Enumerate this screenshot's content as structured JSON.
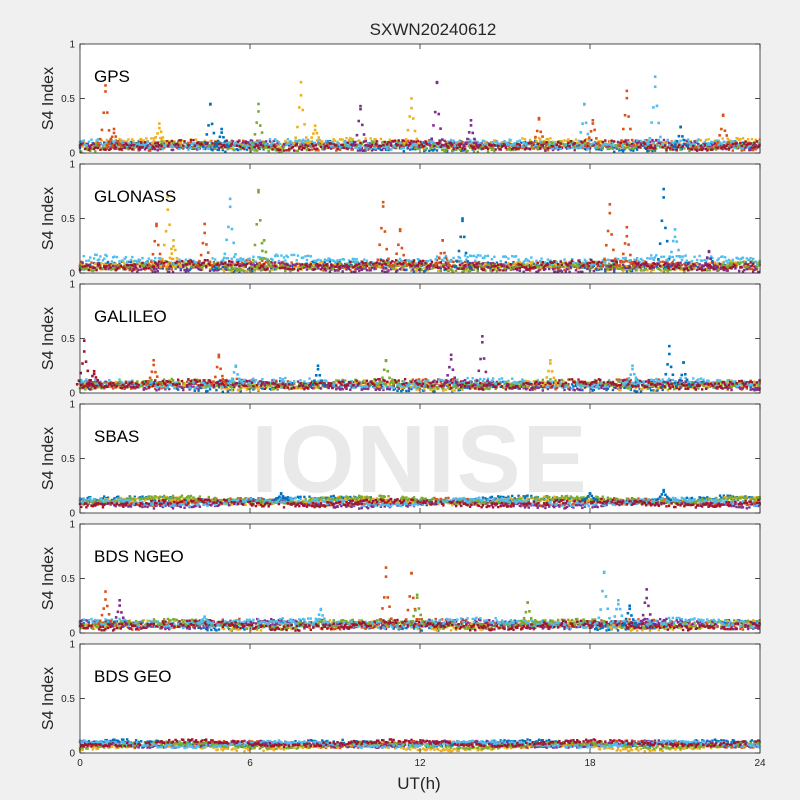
{
  "figure_title": "SXWN20240612",
  "watermark": "IONISE",
  "x_axis": {
    "label": "UT(h)",
    "range": [
      0,
      24
    ],
    "ticks": [
      0,
      6,
      12,
      18,
      24
    ]
  },
  "y_axis": {
    "label": "S4 Index",
    "range": [
      0,
      1
    ],
    "ticks": [
      0,
      0.5,
      1
    ]
  },
  "series_colors": [
    "#0072bd",
    "#d95319",
    "#edb120",
    "#7e2f8e",
    "#77ac30",
    "#4dbeee",
    "#a2142f"
  ],
  "chart_data": [
    {
      "type": "scatter",
      "title": "GPS",
      "xlabel": "UT(h)",
      "ylabel": "S4 Index",
      "xlim": [
        0,
        24
      ],
      "ylim": [
        0,
        1
      ],
      "baseline": [
        0.06,
        0.07,
        0.09,
        0.07,
        0.06,
        0.08,
        0.07
      ],
      "baseline_noise": 0.03,
      "spikes": [
        {
          "x": 0.9,
          "y": 0.62,
          "series": 1
        },
        {
          "x": 1.2,
          "y": 0.22,
          "series": 1
        },
        {
          "x": 2.8,
          "y": 0.27,
          "series": 2
        },
        {
          "x": 4.6,
          "y": 0.45,
          "series": 0
        },
        {
          "x": 5.0,
          "y": 0.22,
          "series": 0
        },
        {
          "x": 6.3,
          "y": 0.45,
          "series": 4
        },
        {
          "x": 7.8,
          "y": 0.65,
          "series": 2
        },
        {
          "x": 8.3,
          "y": 0.25,
          "series": 2
        },
        {
          "x": 9.9,
          "y": 0.43,
          "series": 3
        },
        {
          "x": 11.7,
          "y": 0.5,
          "series": 2
        },
        {
          "x": 12.6,
          "y": 0.65,
          "series": 3
        },
        {
          "x": 13.8,
          "y": 0.3,
          "series": 3
        },
        {
          "x": 16.2,
          "y": 0.32,
          "series": 1
        },
        {
          "x": 17.8,
          "y": 0.45,
          "series": 5
        },
        {
          "x": 18.1,
          "y": 0.3,
          "series": 1
        },
        {
          "x": 19.3,
          "y": 0.57,
          "series": 1
        },
        {
          "x": 20.3,
          "y": 0.7,
          "series": 5
        },
        {
          "x": 21.2,
          "y": 0.24,
          "series": 0
        },
        {
          "x": 22.7,
          "y": 0.35,
          "series": 1
        }
      ]
    },
    {
      "type": "scatter",
      "title": "GLONASS",
      "xlabel": "UT(h)",
      "ylabel": "S4 Index",
      "xlim": [
        0,
        24
      ],
      "ylim": [
        0,
        1
      ],
      "baseline": [
        0.06,
        0.07,
        0.06,
        0.05,
        0.06,
        0.12,
        0.07
      ],
      "baseline_noise": 0.03,
      "spikes": [
        {
          "x": 2.7,
          "y": 0.45,
          "series": 1
        },
        {
          "x": 3.1,
          "y": 0.7,
          "series": 2
        },
        {
          "x": 3.3,
          "y": 0.3,
          "series": 2
        },
        {
          "x": 4.4,
          "y": 0.45,
          "series": 1
        },
        {
          "x": 5.3,
          "y": 0.68,
          "series": 5
        },
        {
          "x": 6.3,
          "y": 0.76,
          "series": 4
        },
        {
          "x": 6.5,
          "y": 0.3,
          "series": 4
        },
        {
          "x": 10.7,
          "y": 0.65,
          "series": 1
        },
        {
          "x": 11.3,
          "y": 0.4,
          "series": 1
        },
        {
          "x": 12.8,
          "y": 0.3,
          "series": 1
        },
        {
          "x": 13.5,
          "y": 0.5,
          "series": 0
        },
        {
          "x": 18.7,
          "y": 0.63,
          "series": 1
        },
        {
          "x": 19.3,
          "y": 0.42,
          "series": 1
        },
        {
          "x": 20.6,
          "y": 0.77,
          "series": 0
        },
        {
          "x": 21.0,
          "y": 0.4,
          "series": 5
        },
        {
          "x": 22.2,
          "y": 0.2,
          "series": 3
        }
      ]
    },
    {
      "type": "scatter",
      "title": "GALILEO",
      "xlabel": "UT(h)",
      "ylabel": "S4 Index",
      "xlim": [
        0,
        24
      ],
      "ylim": [
        0,
        1
      ],
      "baseline": [
        0.06,
        0.08,
        0.07,
        0.07,
        0.08,
        0.09,
        0.08
      ],
      "baseline_noise": 0.03,
      "spikes": [
        {
          "x": 0.15,
          "y": 0.48,
          "series": 6
        },
        {
          "x": 0.5,
          "y": 0.2,
          "series": 6
        },
        {
          "x": 2.6,
          "y": 0.3,
          "series": 1
        },
        {
          "x": 4.9,
          "y": 0.35,
          "series": 1
        },
        {
          "x": 5.5,
          "y": 0.25,
          "series": 5
        },
        {
          "x": 8.4,
          "y": 0.25,
          "series": 0
        },
        {
          "x": 10.8,
          "y": 0.3,
          "series": 4
        },
        {
          "x": 13.1,
          "y": 0.35,
          "series": 3
        },
        {
          "x": 14.2,
          "y": 0.52,
          "series": 3
        },
        {
          "x": 16.6,
          "y": 0.3,
          "series": 2
        },
        {
          "x": 19.5,
          "y": 0.25,
          "series": 5
        },
        {
          "x": 20.8,
          "y": 0.43,
          "series": 0
        },
        {
          "x": 21.3,
          "y": 0.28,
          "series": 0
        }
      ]
    },
    {
      "type": "scatter",
      "title": "SBAS",
      "xlabel": "UT(h)",
      "ylabel": "S4 Index",
      "xlim": [
        0,
        24
      ],
      "ylim": [
        0,
        1
      ],
      "baseline": [
        0.12,
        0.1,
        0.11,
        0.08,
        0.12,
        0.1,
        0.09
      ],
      "baseline_noise": 0.02,
      "spikes": [
        {
          "x": 7.1,
          "y": 0.18,
          "series": 0
        },
        {
          "x": 20.6,
          "y": 0.21,
          "series": 0
        },
        {
          "x": 18.0,
          "y": 0.18,
          "series": 0
        }
      ]
    },
    {
      "type": "scatter",
      "title": "BDS NGEO",
      "xlabel": "UT(h)",
      "ylabel": "S4 Index",
      "xlim": [
        0,
        24
      ],
      "ylim": [
        0,
        1
      ],
      "baseline": [
        0.07,
        0.08,
        0.07,
        0.08,
        0.08,
        0.09,
        0.07
      ],
      "baseline_noise": 0.03,
      "spikes": [
        {
          "x": 0.9,
          "y": 0.38,
          "series": 1
        },
        {
          "x": 1.4,
          "y": 0.3,
          "series": 3
        },
        {
          "x": 4.4,
          "y": 0.15,
          "series": 5
        },
        {
          "x": 8.5,
          "y": 0.22,
          "series": 5
        },
        {
          "x": 10.8,
          "y": 0.6,
          "series": 1
        },
        {
          "x": 11.7,
          "y": 0.55,
          "series": 1
        },
        {
          "x": 11.9,
          "y": 0.35,
          "series": 4
        },
        {
          "x": 15.8,
          "y": 0.28,
          "series": 4
        },
        {
          "x": 18.5,
          "y": 0.56,
          "series": 5
        },
        {
          "x": 19.0,
          "y": 0.3,
          "series": 5
        },
        {
          "x": 19.4,
          "y": 0.25,
          "series": 0
        },
        {
          "x": 20.0,
          "y": 0.4,
          "series": 3
        }
      ]
    },
    {
      "type": "scatter",
      "title": "BDS GEO",
      "xlabel": "UT(h)",
      "ylabel": "S4 Index",
      "xlim": [
        0,
        24
      ],
      "ylim": [
        0,
        1
      ],
      "baseline": [
        0.09,
        0.08,
        0.05,
        0.08,
        0.07,
        0.08,
        0.09
      ],
      "baseline_noise": 0.015,
      "spikes": []
    }
  ]
}
